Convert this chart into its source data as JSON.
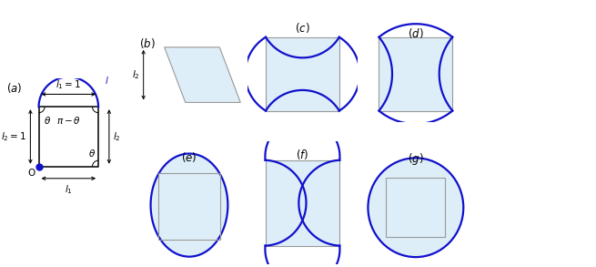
{
  "fig_width": 6.55,
  "fig_height": 2.93,
  "blue": "#1111CC",
  "fill": "#ddeef8",
  "gray": "#999999",
  "darkgray": "#555555"
}
